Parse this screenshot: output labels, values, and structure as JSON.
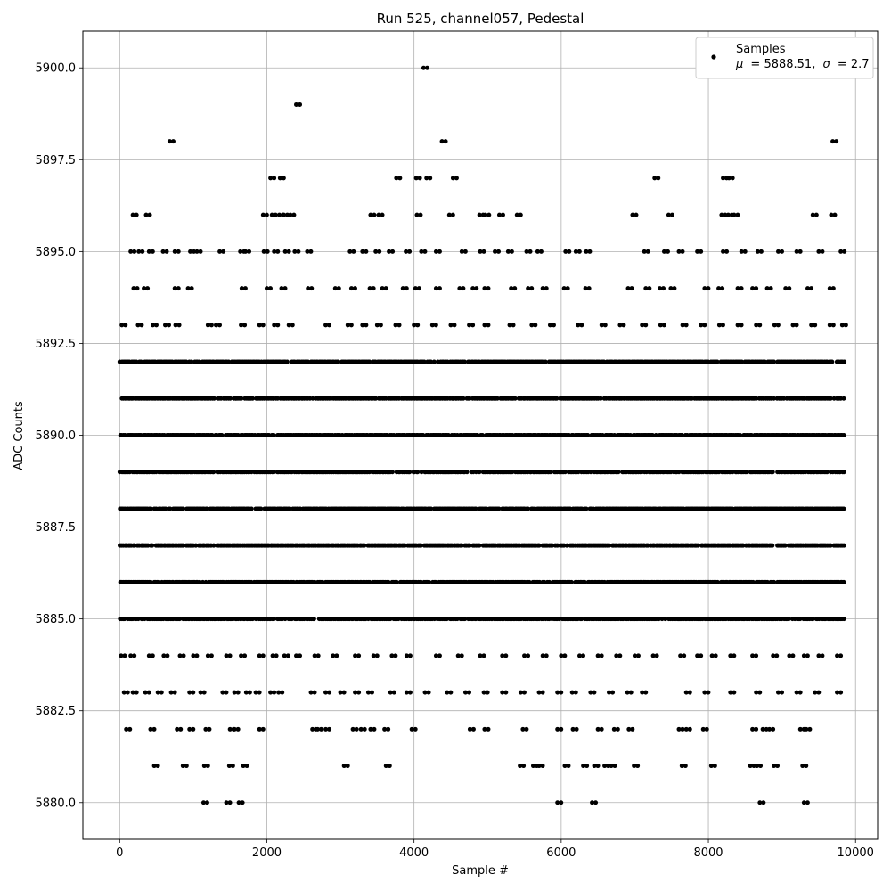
{
  "chart_data": {
    "type": "scatter",
    "title": "Run 525, channel057, Pedestal",
    "xlabel": "Sample #",
    "ylabel": "ADC Counts",
    "xlim": [
      -500,
      10300
    ],
    "ylim": [
      5879.0,
      5901.0
    ],
    "x_ticks": [
      0,
      2000,
      4000,
      6000,
      8000,
      10000
    ],
    "x_tick_labels": [
      "0",
      "2000",
      "4000",
      "6000",
      "8000",
      "10000"
    ],
    "y_ticks": [
      5880.0,
      5882.5,
      5885.0,
      5887.5,
      5890.0,
      5892.5,
      5895.0,
      5897.5,
      5900.0
    ],
    "y_tick_labels": [
      "5880.0",
      "5882.5",
      "5885.0",
      "5887.5",
      "5890.0",
      "5892.5",
      "5895.0",
      "5897.5",
      "5900.0"
    ],
    "grid": true,
    "legend_position": "top-right",
    "series": [
      {
        "name": "Samples",
        "annotation_prefix": "μ",
        "annotation_mean": "= 5888.51,",
        "annotation_sigma_symbol": "σ",
        "annotation_sigma": "= 2.7",
        "color": "#000000",
        "dense_range": [
          0,
          9850
        ],
        "dense_levels": [
          5885,
          5886,
          5887,
          5888,
          5889,
          5890,
          5891,
          5892
        ],
        "sparse_points": [
          [
            680,
            5898
          ],
          [
            2400,
            5899
          ],
          [
            4130,
            5900
          ],
          [
            4380,
            5898
          ],
          [
            9690,
            5898
          ],
          [
            2050,
            5897
          ],
          [
            2180,
            5897
          ],
          [
            3760,
            5897
          ],
          [
            4030,
            5897
          ],
          [
            4170,
            5897
          ],
          [
            4530,
            5897
          ],
          [
            7270,
            5897
          ],
          [
            8200,
            5897
          ],
          [
            8280,
            5897
          ],
          [
            180,
            5896
          ],
          [
            360,
            5896
          ],
          [
            1950,
            5896
          ],
          [
            2070,
            5896
          ],
          [
            2170,
            5896
          ],
          [
            2230,
            5896
          ],
          [
            2320,
            5896
          ],
          [
            3410,
            5896
          ],
          [
            3520,
            5896
          ],
          [
            4040,
            5896
          ],
          [
            4480,
            5896
          ],
          [
            4890,
            5896
          ],
          [
            4970,
            5896
          ],
          [
            5160,
            5896
          ],
          [
            5400,
            5896
          ],
          [
            6970,
            5896
          ],
          [
            7460,
            5896
          ],
          [
            8180,
            5896
          ],
          [
            8270,
            5896
          ],
          [
            8350,
            5896
          ],
          [
            9420,
            5896
          ],
          [
            9670,
            5896
          ],
          [
            150,
            5895
          ],
          [
            260,
            5895
          ],
          [
            400,
            5895
          ],
          [
            590,
            5895
          ],
          [
            750,
            5895
          ],
          [
            960,
            5895
          ],
          [
            1050,
            5895
          ],
          [
            1360,
            5895
          ],
          [
            1640,
            5895
          ],
          [
            1710,
            5895
          ],
          [
            1960,
            5895
          ],
          [
            2100,
            5895
          ],
          [
            2250,
            5895
          ],
          [
            2380,
            5895
          ],
          [
            2550,
            5895
          ],
          [
            3130,
            5895
          ],
          [
            3300,
            5895
          ],
          [
            3480,
            5895
          ],
          [
            3660,
            5895
          ],
          [
            3890,
            5895
          ],
          [
            4100,
            5895
          ],
          [
            4300,
            5895
          ],
          [
            4650,
            5895
          ],
          [
            4900,
            5895
          ],
          [
            5100,
            5895
          ],
          [
            5280,
            5895
          ],
          [
            5530,
            5895
          ],
          [
            5680,
            5895
          ],
          [
            6060,
            5895
          ],
          [
            6200,
            5895
          ],
          [
            6340,
            5895
          ],
          [
            7130,
            5895
          ],
          [
            7400,
            5895
          ],
          [
            7600,
            5895
          ],
          [
            7850,
            5895
          ],
          [
            8200,
            5895
          ],
          [
            8450,
            5895
          ],
          [
            8670,
            5895
          ],
          [
            8950,
            5895
          ],
          [
            9200,
            5895
          ],
          [
            9500,
            5895
          ],
          [
            9800,
            5895
          ],
          [
            190,
            5894
          ],
          [
            330,
            5894
          ],
          [
            750,
            5894
          ],
          [
            930,
            5894
          ],
          [
            1660,
            5894
          ],
          [
            2000,
            5894
          ],
          [
            2200,
            5894
          ],
          [
            2560,
            5894
          ],
          [
            2930,
            5894
          ],
          [
            3150,
            5894
          ],
          [
            3400,
            5894
          ],
          [
            3570,
            5894
          ],
          [
            3850,
            5894
          ],
          [
            4020,
            5894
          ],
          [
            4300,
            5894
          ],
          [
            4620,
            5894
          ],
          [
            4800,
            5894
          ],
          [
            4960,
            5894
          ],
          [
            5320,
            5894
          ],
          [
            5550,
            5894
          ],
          [
            5750,
            5894
          ],
          [
            6040,
            5894
          ],
          [
            6330,
            5894
          ],
          [
            6910,
            5894
          ],
          [
            7150,
            5894
          ],
          [
            7340,
            5894
          ],
          [
            7490,
            5894
          ],
          [
            7950,
            5894
          ],
          [
            8140,
            5894
          ],
          [
            8400,
            5894
          ],
          [
            8600,
            5894
          ],
          [
            8800,
            5894
          ],
          [
            9050,
            5894
          ],
          [
            9350,
            5894
          ],
          [
            9650,
            5894
          ],
          [
            30,
            5893
          ],
          [
            250,
            5893
          ],
          [
            450,
            5893
          ],
          [
            620,
            5893
          ],
          [
            760,
            5893
          ],
          [
            1200,
            5893
          ],
          [
            1310,
            5893
          ],
          [
            1650,
            5893
          ],
          [
            1900,
            5893
          ],
          [
            2100,
            5893
          ],
          [
            2300,
            5893
          ],
          [
            2800,
            5893
          ],
          [
            3100,
            5893
          ],
          [
            3300,
            5893
          ],
          [
            3500,
            5893
          ],
          [
            3750,
            5893
          ],
          [
            4000,
            5893
          ],
          [
            4250,
            5893
          ],
          [
            4500,
            5893
          ],
          [
            4750,
            5893
          ],
          [
            4960,
            5893
          ],
          [
            5300,
            5893
          ],
          [
            5600,
            5893
          ],
          [
            5850,
            5893
          ],
          [
            6230,
            5893
          ],
          [
            6550,
            5893
          ],
          [
            6800,
            5893
          ],
          [
            7100,
            5893
          ],
          [
            7350,
            5893
          ],
          [
            7650,
            5893
          ],
          [
            7900,
            5893
          ],
          [
            8150,
            5893
          ],
          [
            8400,
            5893
          ],
          [
            8650,
            5893
          ],
          [
            8900,
            5893
          ],
          [
            9150,
            5893
          ],
          [
            9400,
            5893
          ],
          [
            9650,
            5893
          ],
          [
            9820,
            5893
          ],
          [
            20,
            5884
          ],
          [
            150,
            5884
          ],
          [
            400,
            5884
          ],
          [
            600,
            5884
          ],
          [
            820,
            5884
          ],
          [
            1000,
            5884
          ],
          [
            1200,
            5884
          ],
          [
            1450,
            5884
          ],
          [
            1650,
            5884
          ],
          [
            1900,
            5884
          ],
          [
            2080,
            5884
          ],
          [
            2240,
            5884
          ],
          [
            2400,
            5884
          ],
          [
            2650,
            5884
          ],
          [
            2900,
            5884
          ],
          [
            3200,
            5884
          ],
          [
            3450,
            5884
          ],
          [
            3700,
            5884
          ],
          [
            3900,
            5884
          ],
          [
            4300,
            5884
          ],
          [
            4600,
            5884
          ],
          [
            4900,
            5884
          ],
          [
            5200,
            5884
          ],
          [
            5500,
            5884
          ],
          [
            5750,
            5884
          ],
          [
            6000,
            5884
          ],
          [
            6250,
            5884
          ],
          [
            6500,
            5884
          ],
          [
            6750,
            5884
          ],
          [
            7000,
            5884
          ],
          [
            7250,
            5884
          ],
          [
            7620,
            5884
          ],
          [
            7850,
            5884
          ],
          [
            8050,
            5884
          ],
          [
            8300,
            5884
          ],
          [
            8600,
            5884
          ],
          [
            8880,
            5884
          ],
          [
            9100,
            5884
          ],
          [
            9300,
            5884
          ],
          [
            9500,
            5884
          ],
          [
            9750,
            5884
          ],
          [
            60,
            5883
          ],
          [
            180,
            5883
          ],
          [
            350,
            5883
          ],
          [
            520,
            5883
          ],
          [
            700,
            5883
          ],
          [
            950,
            5883
          ],
          [
            1100,
            5883
          ],
          [
            1400,
            5883
          ],
          [
            1560,
            5883
          ],
          [
            1720,
            5883
          ],
          [
            1850,
            5883
          ],
          [
            2050,
            5883
          ],
          [
            2160,
            5883
          ],
          [
            2600,
            5883
          ],
          [
            2800,
            5883
          ],
          [
            3000,
            5883
          ],
          [
            3200,
            5883
          ],
          [
            3380,
            5883
          ],
          [
            3680,
            5883
          ],
          [
            3900,
            5883
          ],
          [
            4150,
            5883
          ],
          [
            4450,
            5883
          ],
          [
            4700,
            5883
          ],
          [
            4950,
            5883
          ],
          [
            5200,
            5883
          ],
          [
            5450,
            5883
          ],
          [
            5700,
            5883
          ],
          [
            5950,
            5883
          ],
          [
            6150,
            5883
          ],
          [
            6400,
            5883
          ],
          [
            6650,
            5883
          ],
          [
            6900,
            5883
          ],
          [
            7100,
            5883
          ],
          [
            7700,
            5883
          ],
          [
            7950,
            5883
          ],
          [
            8300,
            5883
          ],
          [
            8650,
            5883
          ],
          [
            8950,
            5883
          ],
          [
            9200,
            5883
          ],
          [
            9450,
            5883
          ],
          [
            9750,
            5883
          ],
          [
            90,
            5882
          ],
          [
            420,
            5882
          ],
          [
            780,
            5882
          ],
          [
            950,
            5882
          ],
          [
            1170,
            5882
          ],
          [
            1500,
            5882
          ],
          [
            1560,
            5882
          ],
          [
            1900,
            5882
          ],
          [
            2620,
            5882
          ],
          [
            2690,
            5882
          ],
          [
            2800,
            5882
          ],
          [
            3170,
            5882
          ],
          [
            3280,
            5882
          ],
          [
            3410,
            5882
          ],
          [
            3600,
            5882
          ],
          [
            3970,
            5882
          ],
          [
            4760,
            5882
          ],
          [
            4960,
            5882
          ],
          [
            5480,
            5882
          ],
          [
            5950,
            5882
          ],
          [
            6160,
            5882
          ],
          [
            6500,
            5882
          ],
          [
            6720,
            5882
          ],
          [
            6920,
            5882
          ],
          [
            7600,
            5882
          ],
          [
            7700,
            5882
          ],
          [
            7930,
            5882
          ],
          [
            8600,
            5882
          ],
          [
            8740,
            5882
          ],
          [
            8830,
            5882
          ],
          [
            9250,
            5882
          ],
          [
            9330,
            5882
          ],
          [
            470,
            5881
          ],
          [
            860,
            5881
          ],
          [
            1150,
            5881
          ],
          [
            1490,
            5881
          ],
          [
            1680,
            5881
          ],
          [
            3050,
            5881
          ],
          [
            3620,
            5881
          ],
          [
            5440,
            5881
          ],
          [
            5620,
            5881
          ],
          [
            5700,
            5881
          ],
          [
            6050,
            5881
          ],
          [
            6300,
            5881
          ],
          [
            6450,
            5881
          ],
          [
            6590,
            5881
          ],
          [
            6680,
            5881
          ],
          [
            6990,
            5881
          ],
          [
            7640,
            5881
          ],
          [
            8040,
            5881
          ],
          [
            8570,
            5881
          ],
          [
            8660,
            5881
          ],
          [
            8890,
            5881
          ],
          [
            9280,
            5881
          ],
          [
            1140,
            5880
          ],
          [
            1450,
            5880
          ],
          [
            1620,
            5880
          ],
          [
            5950,
            5880
          ],
          [
            6420,
            5880
          ],
          [
            8700,
            5880
          ],
          [
            9300,
            5880
          ]
        ]
      }
    ]
  }
}
